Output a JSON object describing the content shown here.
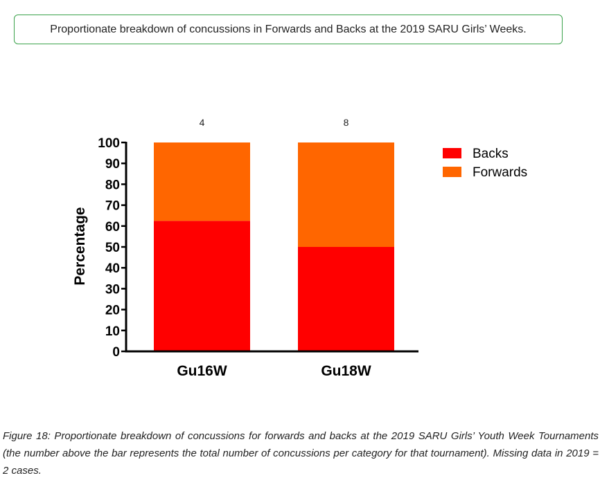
{
  "header": {
    "title": "Proportionate breakdown of concussions in Forwards and Backs at the 2019 SARU Girls’ Weeks."
  },
  "chart_data": {
    "type": "bar",
    "stacked": true,
    "categories": [
      "Gu16W",
      "Gu18W"
    ],
    "series": [
      {
        "name": "Backs",
        "values": [
          62.5,
          50
        ],
        "color": "#ff0000"
      },
      {
        "name": "Forwards",
        "values": [
          37.5,
          50
        ],
        "color": "#ff6600"
      }
    ],
    "counts": [
      "4",
      "8"
    ],
    "ylabel": "Percentage",
    "xlabel": "",
    "ylim": [
      0,
      100
    ],
    "yticks": [
      "0",
      "10",
      "20",
      "30",
      "40",
      "50",
      "60",
      "70",
      "80",
      "90",
      "100"
    ],
    "grid": false,
    "legend_position": "top-right"
  },
  "caption": {
    "label": "Figure 18:",
    "text": " Proportionate breakdown of concussions for forwards and backs at the 2019 SARU Girls’ Youth Week Tournaments (the number above the bar represents the total number of concussions per category for that tournament). Missing data in 2019 = 2 cases."
  }
}
